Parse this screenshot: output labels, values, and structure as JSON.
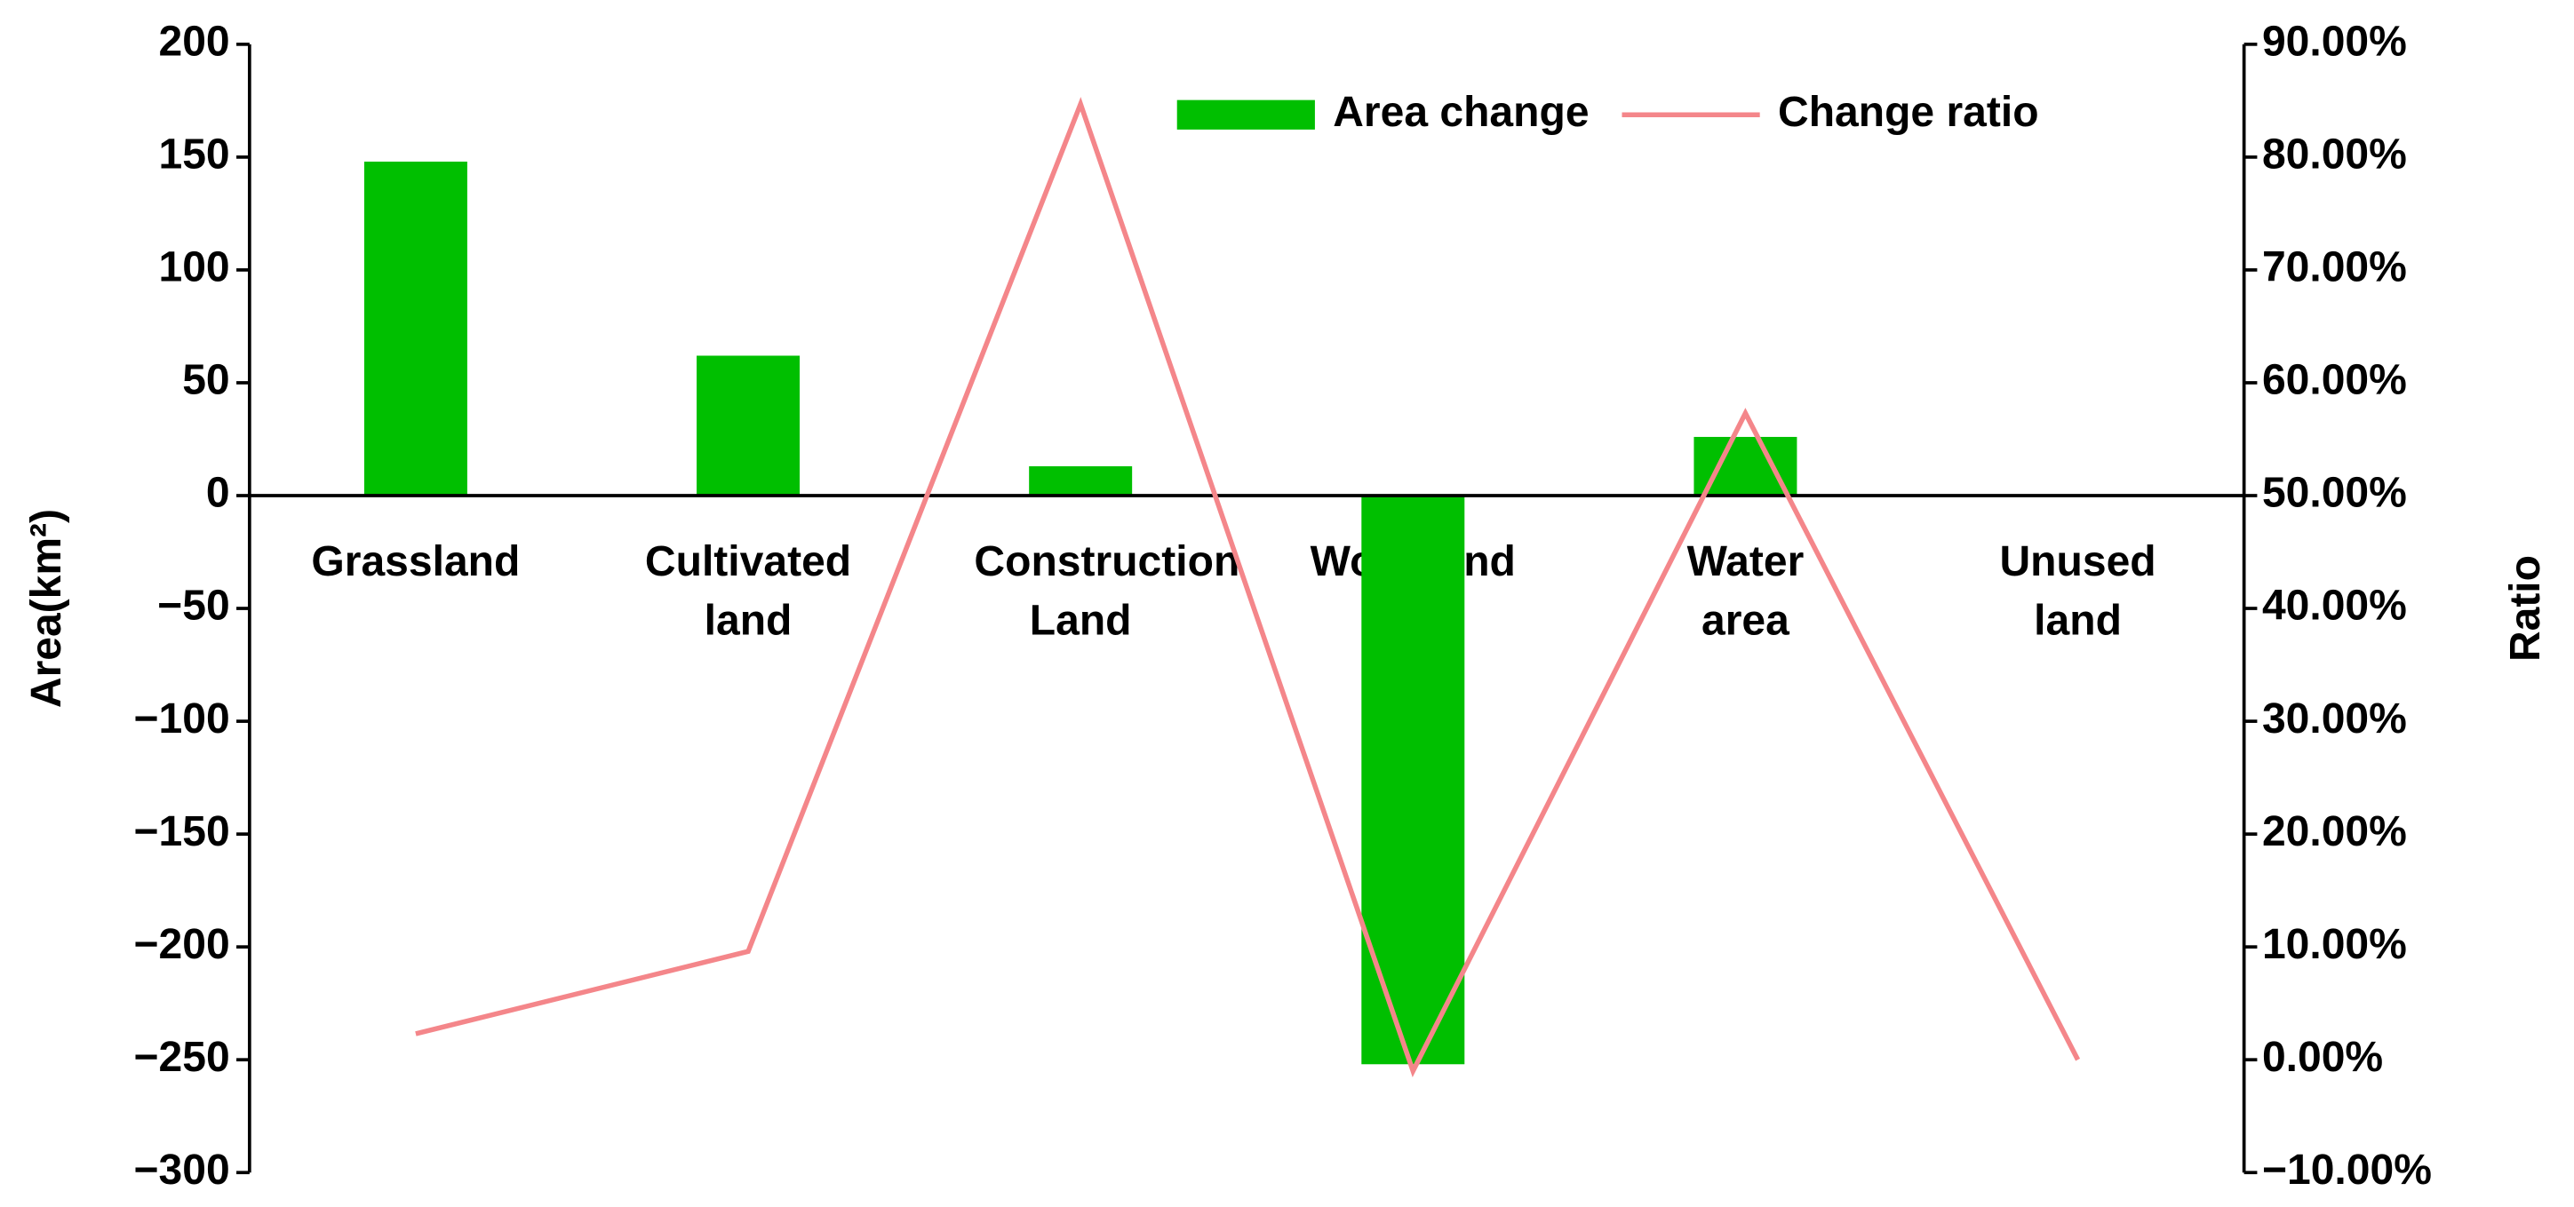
{
  "chart_data": {
    "type": "bar",
    "categories": [
      "Grassland",
      "Cultivated land",
      "Construction Land",
      "Woodland",
      "Water area",
      "Unused land"
    ],
    "series": [
      {
        "name": "Area change",
        "type": "bar",
        "color": "#00bf00",
        "values": [
          148,
          62,
          13,
          -252,
          26,
          0
        ]
      },
      {
        "name": "Change ratio",
        "type": "line",
        "axis": "y2",
        "color": "#f4868a",
        "values": [
          2.3,
          9.6,
          84.7,
          -1,
          57.3,
          0
        ]
      }
    ],
    "y_label": "Area(km²)",
    "y2_label": "Ratio",
    "ylim": [
      -300,
      200
    ],
    "yticks": [
      {
        "value": -300,
        "label": "−300"
      },
      {
        "value": -250,
        "label": "−250"
      },
      {
        "value": -200,
        "label": "−200"
      },
      {
        "value": -150,
        "label": "−150"
      },
      {
        "value": -100,
        "label": "−100"
      },
      {
        "value": -50,
        "label": "−50"
      },
      0,
      50,
      100,
      150,
      200
    ],
    "y2lim": [
      -10,
      90
    ],
    "y2ticks": [
      {
        "value": -10,
        "label": "−10.00%"
      },
      {
        "value": 0,
        "label": "0.00%"
      },
      {
        "value": 10,
        "label": "10.00%"
      },
      {
        "value": 20,
        "label": "20.00%"
      },
      {
        "value": 30,
        "label": "30.00%"
      },
      {
        "value": 40,
        "label": "40.00%"
      },
      {
        "value": 50,
        "label": "50.00%"
      },
      {
        "value": 60,
        "label": "60.00%"
      },
      {
        "value": 70,
        "label": "70.00%"
      },
      {
        "value": 80,
        "label": "80.00%"
      },
      {
        "value": 90,
        "label": "90.00%"
      }
    ],
    "legend": "top-right",
    "grid": false
  }
}
